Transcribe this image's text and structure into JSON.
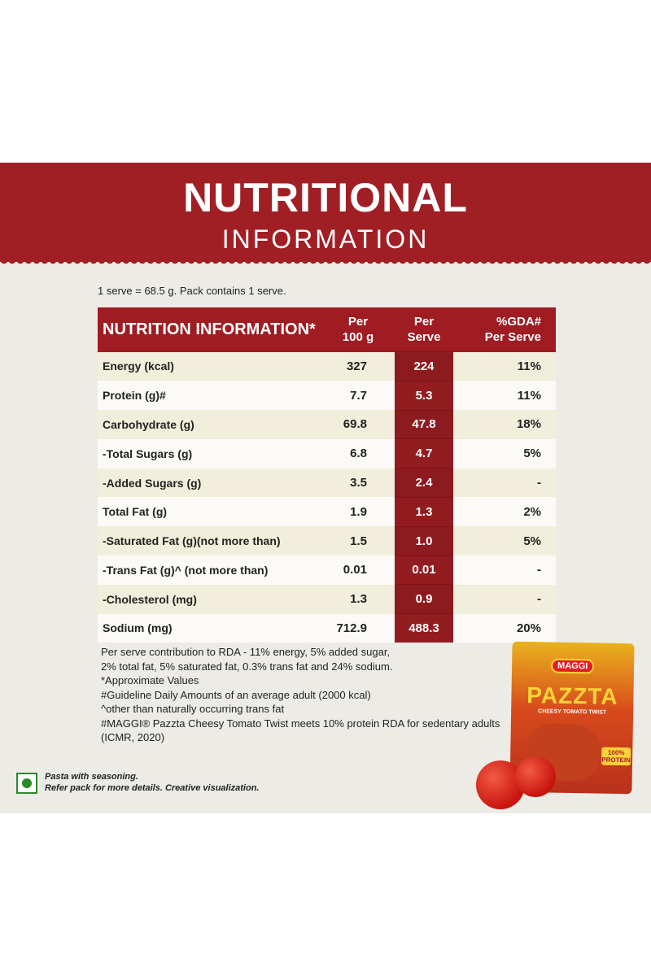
{
  "header": {
    "title": "NUTRITIONAL",
    "subtitle": "INFORMATION"
  },
  "serve_note": "1 serve = 68.5 g. Pack contains 1 serve.",
  "table": {
    "header": [
      "NUTRITION INFORMATION*",
      [
        "Per",
        "100 g"
      ],
      [
        "Per",
        "Serve"
      ],
      [
        "%GDA#",
        "Per Serve"
      ]
    ],
    "rows": [
      [
        "Energy (kcal)",
        "327",
        "224",
        "11%"
      ],
      [
        "Protein (g)#",
        "7.7",
        "5.3",
        "11%"
      ],
      [
        "Carbohydrate (g)",
        "69.8",
        "47.8",
        "18%"
      ],
      [
        "-Total Sugars (g)",
        "6.8",
        "4.7",
        "5%"
      ],
      [
        "-Added Sugars (g)",
        "3.5",
        "2.4",
        "-"
      ],
      [
        "Total Fat (g)",
        "1.9",
        "1.3",
        "2%"
      ],
      [
        "-Saturated Fat (g)(not more than)",
        "1.5",
        "1.0",
        "5%"
      ],
      [
        "-Trans Fat (g)^ (not more than)",
        "0.01",
        "0.01",
        "-"
      ],
      [
        "-Cholesterol (mg)",
        "1.3",
        "0.9",
        "-"
      ],
      [
        "Sodium (mg)",
        "712.9",
        "488.3",
        "20%"
      ]
    ]
  },
  "footnotes": [
    "Per serve contribution to RDA - 11% energy, 5% added sugar,",
    "2% total fat, 5% saturated fat, 0.3% trans fat and 24% sodium.",
    "*Approximate Values",
    "#Guideline Daily Amounts of an average adult (2000 kcal)",
    "^other than naturally occurring trans fat",
    "#MAGGI® Pazzta Cheesy Tomato Twist meets 10% protein RDA for sedentary adults",
    "(ICMR, 2020)"
  ],
  "veg_note": [
    "Pasta with seasoning.",
    "Refer pack for more details. Creative visualization."
  ],
  "pack": {
    "brand": "MAGGI",
    "name": "PAZZTA",
    "flavour": "CHEESY TOMATO TWIST",
    "badge": [
      "100%",
      "PROTEIN"
    ]
  }
}
